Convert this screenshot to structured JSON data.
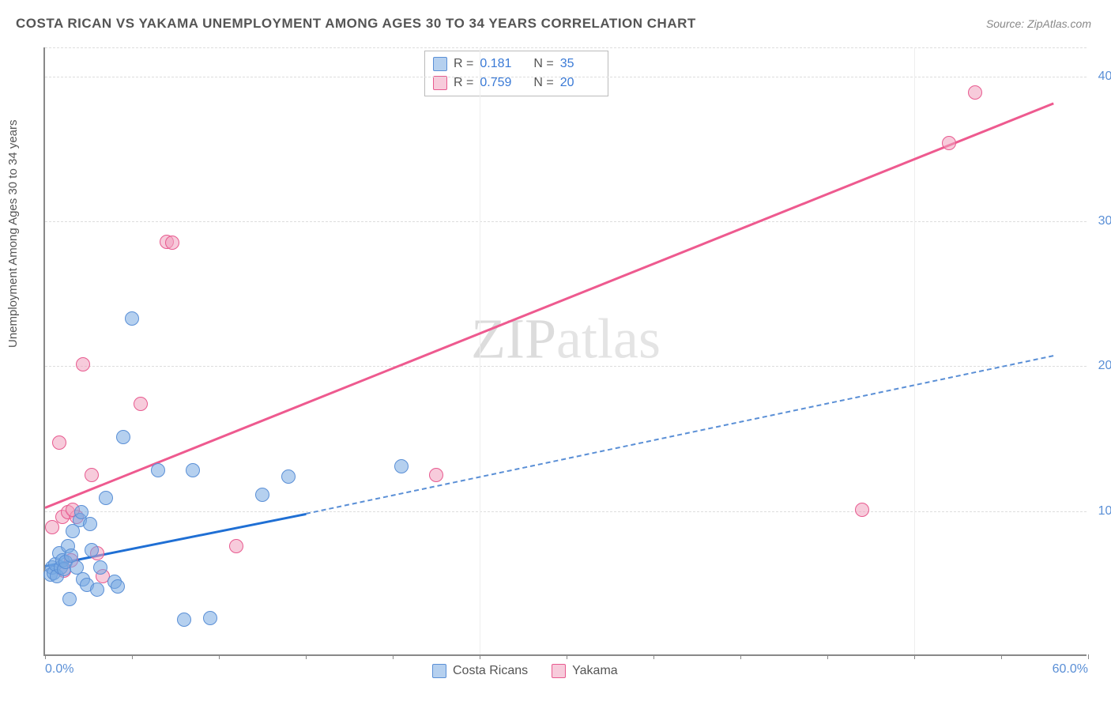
{
  "title": "COSTA RICAN VS YAKAMA UNEMPLOYMENT AMONG AGES 30 TO 34 YEARS CORRELATION CHART",
  "source": "Source: ZipAtlas.com",
  "ylabel": "Unemployment Among Ages 30 to 34 years",
  "watermark_a": "ZIP",
  "watermark_b": "atlas",
  "chart": {
    "type": "scatter-correlation",
    "xlim": [
      0,
      60
    ],
    "ylim": [
      0,
      42
    ],
    "x_ticks": [
      0,
      5,
      10,
      15,
      20,
      25,
      30,
      35,
      40,
      45,
      50,
      55,
      60
    ],
    "x_tick_labels": {
      "0": "0.0%",
      "60": "60.0%"
    },
    "y_gridlines": [
      10,
      20,
      30,
      40,
      42
    ],
    "y_tick_labels": {
      "10": "10.0%",
      "20": "20.0%",
      "30": "30.0%",
      "40": "40.0%"
    },
    "background_color": "#ffffff",
    "grid_color": "#dddddd",
    "axis_color": "#888888",
    "tick_label_color": "#5a8fd6",
    "point_radius": 9,
    "series": {
      "costa_ricans": {
        "label": "Costa Ricans",
        "color_fill": "rgba(120,170,225,0.55)",
        "color_stroke": "#5a8fd6",
        "R": "0.181",
        "N": "35",
        "trend": {
          "solid": {
            "x0": 0,
            "y0": 6.3,
            "x1": 15,
            "y1": 9.9,
            "color": "#1f6fd4",
            "width": 3
          },
          "dashed": {
            "x0": 15,
            "y0": 9.9,
            "x1": 58,
            "y1": 20.8,
            "color": "#5a8fd6",
            "width": 2
          }
        },
        "points": [
          [
            0.3,
            5.5
          ],
          [
            0.4,
            6.0
          ],
          [
            0.5,
            5.6
          ],
          [
            0.6,
            6.2
          ],
          [
            0.7,
            5.4
          ],
          [
            0.8,
            7.0
          ],
          [
            0.9,
            6.0
          ],
          [
            1.0,
            6.5
          ],
          [
            1.1,
            5.9
          ],
          [
            1.2,
            6.4
          ],
          [
            1.3,
            7.5
          ],
          [
            1.5,
            6.8
          ],
          [
            1.6,
            8.5
          ],
          [
            1.8,
            6.0
          ],
          [
            2.0,
            9.3
          ],
          [
            2.2,
            5.2
          ],
          [
            2.4,
            4.8
          ],
          [
            2.6,
            9.0
          ],
          [
            2.7,
            7.2
          ],
          [
            3.0,
            4.5
          ],
          [
            3.2,
            6.0
          ],
          [
            3.5,
            10.8
          ],
          [
            4.0,
            5.0
          ],
          [
            4.2,
            4.7
          ],
          [
            4.5,
            15.0
          ],
          [
            5.0,
            23.2
          ],
          [
            6.5,
            12.7
          ],
          [
            8.0,
            2.4
          ],
          [
            8.5,
            12.7
          ],
          [
            9.5,
            2.5
          ],
          [
            12.5,
            11.0
          ],
          [
            14.0,
            12.3
          ],
          [
            20.5,
            13.0
          ],
          [
            1.4,
            3.8
          ],
          [
            2.1,
            9.8
          ]
        ]
      },
      "yakama": {
        "label": "Yakama",
        "color_fill": "rgba(240,160,190,0.55)",
        "color_stroke": "#e85a8f",
        "R": "0.759",
        "N": "20",
        "trend": {
          "solid": {
            "x0": 0,
            "y0": 10.3,
            "x1": 58,
            "y1": 38.2,
            "color": "#ee5a8f",
            "width": 3
          }
        },
        "points": [
          [
            0.4,
            8.8
          ],
          [
            0.8,
            14.6
          ],
          [
            1.0,
            9.5
          ],
          [
            1.1,
            5.8
          ],
          [
            1.3,
            9.8
          ],
          [
            1.5,
            6.5
          ],
          [
            1.8,
            9.5
          ],
          [
            2.2,
            20.0
          ],
          [
            2.7,
            12.4
          ],
          [
            3.0,
            7.0
          ],
          [
            3.3,
            5.4
          ],
          [
            5.5,
            17.3
          ],
          [
            7.0,
            28.5
          ],
          [
            7.3,
            28.4
          ],
          [
            11.0,
            7.5
          ],
          [
            22.5,
            12.4
          ],
          [
            47.0,
            10.0
          ],
          [
            52.0,
            35.3
          ],
          [
            53.5,
            38.8
          ],
          [
            1.6,
            10.0
          ]
        ]
      }
    }
  },
  "legend_top": {
    "r_label": "R =",
    "n_label": "N ="
  }
}
